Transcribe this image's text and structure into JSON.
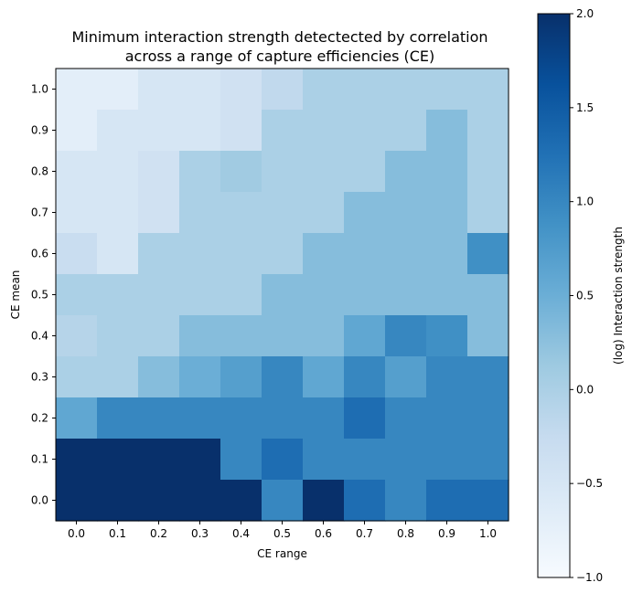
{
  "chart_data": [
    {
      "type": "heatmap",
      "title": "Minimum interaction strength detectected by correlation\nacross a range of capture efficiencies (CE)",
      "xlabel": "CE range",
      "ylabel": "CE mean",
      "x_ticks": [
        "0.0",
        "0.1",
        "0.2",
        "0.3",
        "0.4",
        "0.5",
        "0.6",
        "0.7",
        "0.8",
        "0.9",
        "1.0"
      ],
      "y_ticks": [
        "0.0",
        "0.1",
        "0.2",
        "0.3",
        "0.4",
        "0.5",
        "0.6",
        "0.7",
        "0.8",
        "0.9",
        "1.0"
      ],
      "z_rows_top_to_bottom_y_1_0_to_0_0": [
        [
          -0.7,
          -0.7,
          -0.5,
          -0.5,
          -0.4,
          -0.2,
          0.0,
          0.0,
          0.0,
          0.0,
          0.0
        ],
        [
          -0.7,
          -0.5,
          -0.5,
          -0.5,
          -0.4,
          0.0,
          0.0,
          0.0,
          0.0,
          0.3,
          0.0
        ],
        [
          -0.5,
          -0.5,
          -0.4,
          0.0,
          0.1,
          0.0,
          0.0,
          0.0,
          0.3,
          0.3,
          0.0
        ],
        [
          -0.5,
          -0.5,
          -0.4,
          0.0,
          0.0,
          0.0,
          0.0,
          0.3,
          0.3,
          0.3,
          0.0
        ],
        [
          -0.3,
          -0.5,
          0.0,
          0.0,
          0.0,
          0.0,
          0.3,
          0.3,
          0.3,
          0.3,
          0.9
        ],
        [
          0.0,
          0.0,
          0.0,
          0.0,
          0.0,
          0.3,
          0.3,
          0.3,
          0.3,
          0.3,
          0.3
        ],
        [
          -0.1,
          0.0,
          0.0,
          0.3,
          0.3,
          0.3,
          0.3,
          0.6,
          1.0,
          0.9,
          0.3
        ],
        [
          0.0,
          0.0,
          0.3,
          0.5,
          0.7,
          1.0,
          0.6,
          1.0,
          0.7,
          1.0,
          1.0
        ],
        [
          0.6,
          1.0,
          1.0,
          1.0,
          1.0,
          1.0,
          1.0,
          1.3,
          1.0,
          1.0,
          1.0
        ],
        [
          2.0,
          2.0,
          2.0,
          2.0,
          1.0,
          1.3,
          1.0,
          1.0,
          1.0,
          1.0,
          1.0
        ],
        [
          2.0,
          2.0,
          2.0,
          2.0,
          2.0,
          1.0,
          2.0,
          1.3,
          1.0,
          1.3,
          1.3
        ]
      ],
      "colormap": "Blues"
    },
    {
      "type": "colorbar",
      "label": "(log) Interaction strength",
      "range": [
        -1.0,
        2.0
      ],
      "ticks": [
        "2.0",
        "1.5",
        "1.0",
        "0.5",
        "0.0",
        "−0.5",
        "−1.0"
      ],
      "tick_values": [
        2.0,
        1.5,
        1.0,
        0.5,
        0.0,
        -0.5,
        -1.0
      ]
    }
  ]
}
